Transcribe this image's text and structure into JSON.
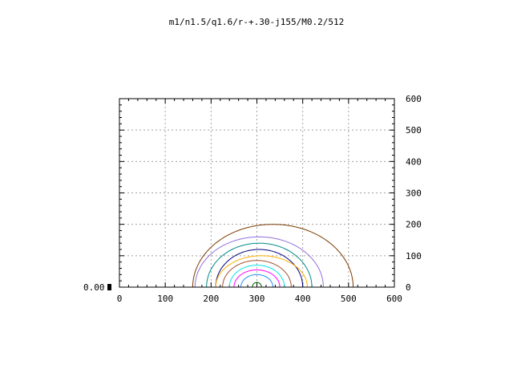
{
  "chart_data": {
    "type": "line",
    "title": "m1/n1.5/q1.6/r-+.30-j155/M0.2/512",
    "xlabel": "",
    "ylabel": "",
    "xlim": [
      0,
      600
    ],
    "ylim": [
      0,
      600
    ],
    "x_ticks": [
      "0",
      "100",
      "200",
      "300",
      "400",
      "500",
      "600"
    ],
    "y_ticks_right": [
      "0",
      "100",
      "200",
      "300",
      "400",
      "500",
      "600"
    ],
    "left_axis_label": "0.00",
    "grid": true,
    "legend": "none",
    "series": [
      {
        "color": "#7a3b00",
        "center_x": 335,
        "radius_x": 175,
        "radius_y": 200
      },
      {
        "color": "#9370db",
        "center_x": 305,
        "radius_x": 140,
        "radius_y": 160
      },
      {
        "color": "#008b8b",
        "center_x": 305,
        "radius_x": 115,
        "radius_y": 140
      },
      {
        "color": "#000080",
        "center_x": 305,
        "radius_x": 95,
        "radius_y": 120
      },
      {
        "color": "#ffb000",
        "center_x": 310,
        "radius_x": 100,
        "radius_y": 100
      },
      {
        "color": "#a0522d",
        "center_x": 300,
        "radius_x": 75,
        "radius_y": 85
      },
      {
        "color": "#00e5ee",
        "center_x": 300,
        "radius_x": 60,
        "radius_y": 70
      },
      {
        "color": "#ff00ff",
        "center_x": 300,
        "radius_x": 50,
        "radius_y": 55
      },
      {
        "color": "#1e90ff",
        "center_x": 300,
        "radius_x": 35,
        "radius_y": 40
      },
      {
        "color": "#006400",
        "center_x": 300,
        "radius_x": 10,
        "radius_y": 15
      }
    ]
  }
}
